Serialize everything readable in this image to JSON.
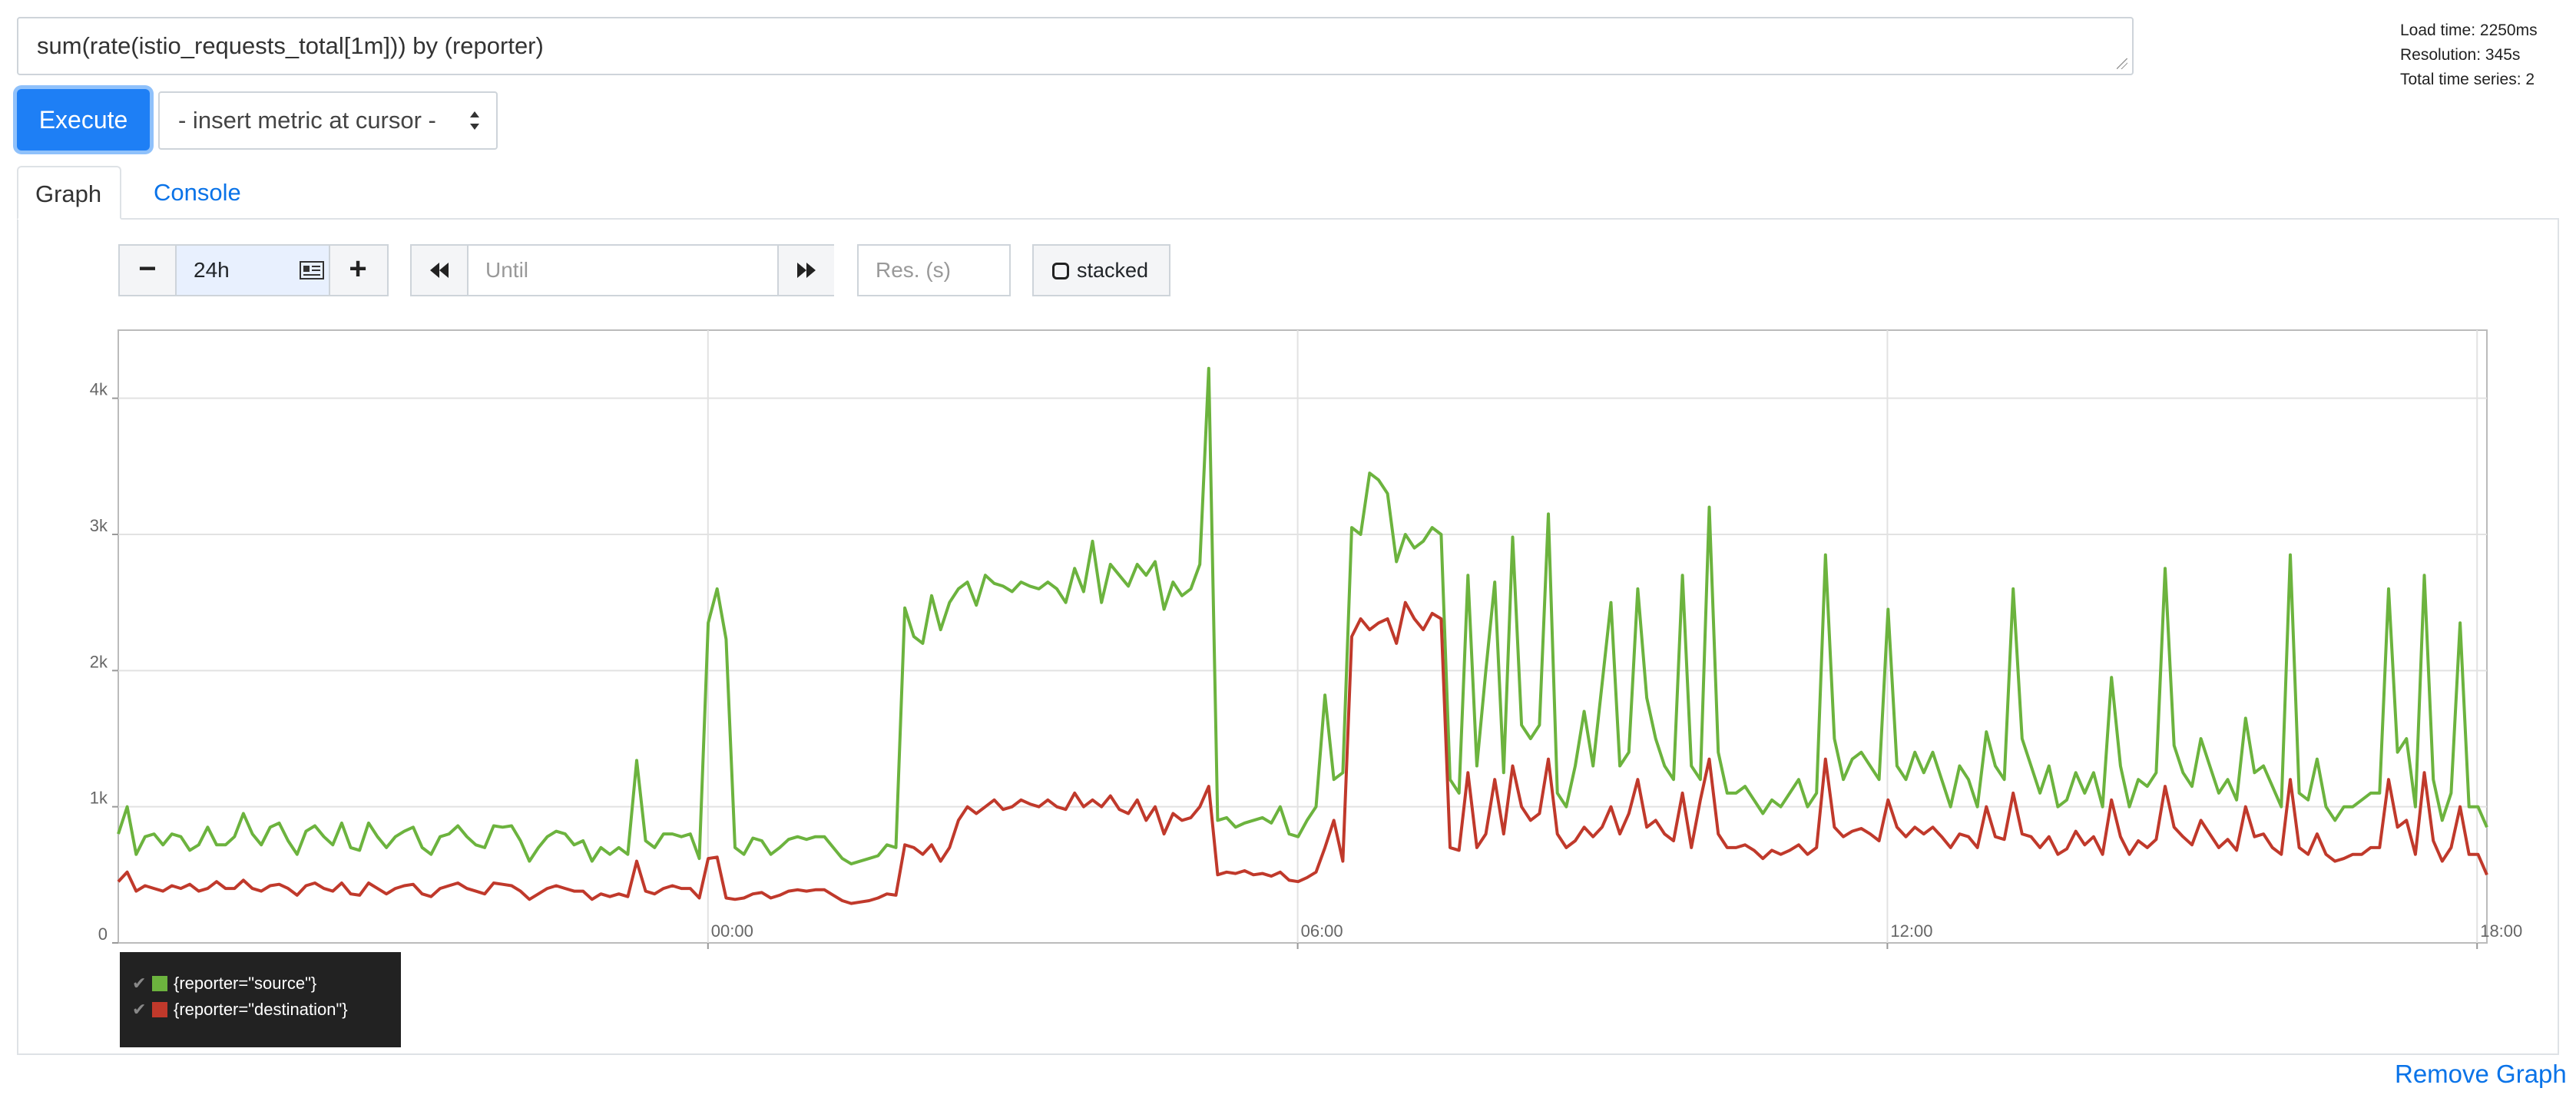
{
  "query": {
    "expression": "sum(rate(istio_requests_total[1m])) by (reporter)"
  },
  "stats": {
    "load_time": "Load time: 2250ms",
    "resolution": "Resolution: 345s",
    "total_series": "Total time series: 2"
  },
  "toolbar": {
    "execute_label": "Execute",
    "insert_metric_label": "- insert metric at cursor -"
  },
  "tabs": [
    {
      "label": "Graph",
      "active": true
    },
    {
      "label": "Console",
      "active": false
    }
  ],
  "graph_controls": {
    "range_minus": "−",
    "range_value": "24h",
    "range_plus": "+",
    "until_placeholder": "Until",
    "res_placeholder": "Res. (s)",
    "stacked_label": "stacked"
  },
  "colors": {
    "source": "#6cb33e",
    "destination": "#c0392b",
    "accent": "#1e7ff5"
  },
  "chart_data": {
    "type": "line",
    "x_unit": "hours since 18:00 prior day",
    "x_range": [
      0,
      24.1
    ],
    "ylim": [
      0,
      4500
    ],
    "y_ticks": [
      0,
      1000,
      2000,
      3000,
      4000
    ],
    "y_tick_labels": [
      "0",
      "1k",
      "2k",
      "3k",
      "4k"
    ],
    "x_ticks": [
      6,
      12,
      18,
      24
    ],
    "x_tick_labels": [
      "00:00",
      "06:00",
      "12:00",
      "18:00"
    ],
    "legend_position": "bottom-left",
    "series": [
      {
        "name": "{reporter=\"source\"}",
        "color": "#6cb33e",
        "values": [
          800,
          1000,
          650,
          780,
          800,
          720,
          800,
          780,
          680,
          720,
          850,
          720,
          720,
          780,
          950,
          800,
          720,
          850,
          880,
          750,
          650,
          820,
          860,
          780,
          720,
          880,
          700,
          680,
          880,
          780,
          700,
          780,
          820,
          850,
          700,
          650,
          780,
          800,
          860,
          780,
          720,
          700,
          860,
          850,
          860,
          750,
          600,
          700,
          780,
          820,
          800,
          720,
          750,
          600,
          700,
          650,
          700,
          650,
          1340,
          750,
          700,
          800,
          800,
          780,
          800,
          620,
          2350,
          2600,
          2230,
          700,
          650,
          770,
          750,
          650,
          700,
          760,
          780,
          760,
          780,
          780,
          700,
          620,
          580,
          600,
          620,
          640,
          720,
          700,
          2460,
          2250,
          2200,
          2550,
          2300,
          2500,
          2600,
          2650,
          2480,
          2700,
          2640,
          2620,
          2580,
          2650,
          2620,
          2600,
          2650,
          2600,
          2500,
          2750,
          2580,
          2950,
          2500,
          2780,
          2700,
          2620,
          2780,
          2700,
          2800,
          2450,
          2650,
          2550,
          2600,
          2780,
          4220,
          900,
          920,
          850,
          880,
          900,
          920,
          880,
          1000,
          800,
          780,
          900,
          1000,
          1820,
          1200,
          1250,
          3050,
          3000,
          3450,
          3400,
          3300,
          2800,
          3000,
          2900,
          2950,
          3050,
          3000,
          1200,
          1100,
          2700,
          1300,
          2000,
          2650,
          1250,
          2980,
          1600,
          1500,
          1600,
          3150,
          1100,
          1000,
          1300,
          1700,
          1300,
          1900,
          2500,
          1300,
          1400,
          2600,
          1800,
          1500,
          1300,
          1200,
          2700,
          1300,
          1200,
          3200,
          1400,
          1100,
          1100,
          1150,
          1050,
          950,
          1050,
          1000,
          1100,
          1200,
          1000,
          1100,
          2850,
          1500,
          1200,
          1350,
          1400,
          1300,
          1200,
          2450,
          1300,
          1200,
          1400,
          1250,
          1400,
          1200,
          1000,
          1300,
          1200,
          1000,
          1550,
          1300,
          1200,
          2600,
          1500,
          1300,
          1100,
          1300,
          1000,
          1050,
          1250,
          1100,
          1250,
          1000,
          1950,
          1300,
          1000,
          1200,
          1150,
          1250,
          2750,
          1450,
          1250,
          1150,
          1500,
          1300,
          1100,
          1200,
          1050,
          1650,
          1250,
          1300,
          1150,
          1000,
          2850,
          1100,
          1050,
          1350,
          1000,
          900,
          1000,
          1000,
          1050,
          1100,
          1100,
          2600,
          1400,
          1500,
          1000,
          2700,
          1200,
          900,
          1100,
          2350,
          1000,
          1000,
          850
        ]
      },
      {
        "name": "{reporter=\"destination\"}",
        "color": "#c0392b",
        "values": [
          450,
          520,
          380,
          420,
          400,
          380,
          420,
          400,
          430,
          380,
          400,
          450,
          400,
          400,
          460,
          400,
          380,
          420,
          430,
          400,
          350,
          420,
          440,
          400,
          380,
          440,
          360,
          350,
          440,
          400,
          360,
          400,
          420,
          430,
          360,
          340,
          400,
          420,
          440,
          400,
          380,
          360,
          440,
          430,
          420,
          380,
          320,
          360,
          400,
          420,
          400,
          380,
          380,
          320,
          360,
          340,
          360,
          340,
          600,
          380,
          360,
          400,
          420,
          400,
          400,
          330,
          620,
          630,
          330,
          320,
          330,
          360,
          370,
          330,
          350,
          380,
          390,
          380,
          390,
          390,
          350,
          310,
          290,
          300,
          310,
          330,
          360,
          350,
          720,
          700,
          650,
          720,
          600,
          700,
          900,
          1000,
          950,
          1000,
          1050,
          980,
          1000,
          1050,
          1020,
          1000,
          1050,
          1000,
          980,
          1100,
          1000,
          1050,
          1000,
          1080,
          980,
          950,
          1050,
          900,
          1000,
          800,
          950,
          900,
          920,
          1000,
          1150,
          500,
          520,
          510,
          530,
          500,
          510,
          490,
          520,
          460,
          450,
          480,
          520,
          700,
          900,
          600,
          2250,
          2380,
          2300,
          2350,
          2380,
          2200,
          2500,
          2380,
          2300,
          2420,
          2380,
          700,
          680,
          1250,
          700,
          800,
          1200,
          800,
          1300,
          1000,
          900,
          950,
          1350,
          800,
          700,
          750,
          850,
          780,
          850,
          1000,
          800,
          950,
          1200,
          850,
          900,
          800,
          750,
          1100,
          700,
          1050,
          1350,
          800,
          700,
          700,
          720,
          680,
          620,
          680,
          650,
          680,
          720,
          650,
          700,
          1350,
          850,
          780,
          820,
          840,
          800,
          750,
          1050,
          850,
          780,
          850,
          800,
          850,
          780,
          700,
          800,
          780,
          700,
          1000,
          780,
          760,
          1100,
          800,
          780,
          700,
          780,
          650,
          690,
          820,
          720,
          780,
          650,
          1050,
          780,
          650,
          750,
          700,
          760,
          1150,
          850,
          780,
          720,
          900,
          800,
          700,
          760,
          680,
          1000,
          780,
          800,
          700,
          650,
          1200,
          700,
          650,
          800,
          650,
          600,
          620,
          650,
          650,
          700,
          700,
          1200,
          850,
          900,
          650,
          1250,
          750,
          600,
          700,
          1000,
          650,
          650,
          500
        ]
      }
    ]
  },
  "legend": {
    "items": [
      {
        "label": "{reporter=\"source\"}"
      },
      {
        "label": "{reporter=\"destination\"}"
      }
    ]
  },
  "footer": {
    "remove_graph_label": "Remove Graph"
  }
}
